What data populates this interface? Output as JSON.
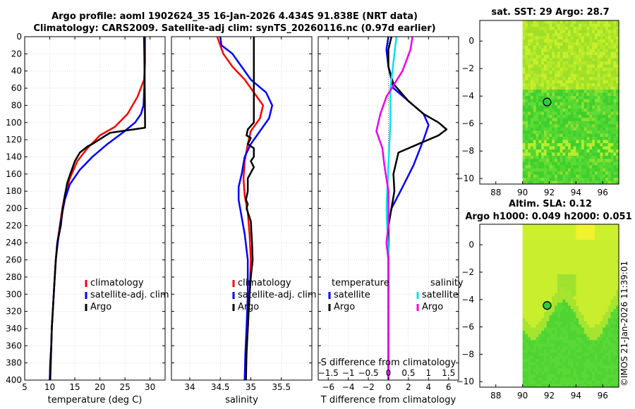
{
  "titles": {
    "line1": "Argo profile: aoml 1902624_35 16-Jan-2026 4.434S 91.838E (NRT data)",
    "line2": "Climatology: CARS2009. Satellite-adj clim: synTS_20260116.nc (0.97d earlier)",
    "sst": "sat. SST: 29 Argo: 28.7",
    "sla1": "Altim. SLA: 0.12",
    "sla2": "Argo h1000: 0.049 h2000: 0.051"
  },
  "footer": "©IMOS 21-Jan-2026 11:39:01",
  "colors": {
    "climatology": "#ff0000",
    "satellite": "#0000ff",
    "argo": "#000000",
    "s_satellite": "#00e5ee",
    "s_argo": "#ee00ee"
  },
  "chart_data": [
    {
      "type": "line",
      "id": "temp",
      "xlabel": "temperature (deg C)",
      "ylabel": "",
      "xlim": [
        5,
        33
      ],
      "ylim": [
        0,
        400
      ],
      "reverse_y": true,
      "grid": true,
      "xticks": [
        5,
        10,
        15,
        20,
        25,
        30
      ],
      "yticks": [
        0,
        20,
        40,
        60,
        80,
        100,
        120,
        140,
        160,
        180,
        200,
        220,
        240,
        260,
        280,
        300,
        320,
        340,
        360,
        380,
        400
      ],
      "legend": {
        "placement": "middle-right",
        "entries": [
          "climatology",
          "satellite-adj. clim",
          "Argo"
        ]
      },
      "series": [
        {
          "name": "climatology",
          "color": "climatology",
          "points": [
            [
              29,
              0
            ],
            [
              29,
              30
            ],
            [
              28.8,
              50
            ],
            [
              27.5,
              70
            ],
            [
              25.5,
              90
            ],
            [
              23,
              105
            ],
            [
              20,
              115
            ],
            [
              17.5,
              130
            ],
            [
              15.5,
              145
            ],
            [
              14,
              165
            ],
            [
              13,
              185
            ],
            [
              12.5,
              200
            ],
            [
              12,
              220
            ],
            [
              11.5,
              240
            ],
            [
              11.2,
              260
            ],
            [
              11,
              280
            ],
            [
              10.8,
              300
            ],
            [
              10.6,
              320
            ],
            [
              10.4,
              340
            ],
            [
              10.3,
              360
            ],
            [
              10.1,
              380
            ],
            [
              10,
              400
            ]
          ]
        },
        {
          "name": "satellite-adj. clim",
          "color": "satellite",
          "points": [
            [
              28.9,
              0
            ],
            [
              28.9,
              50
            ],
            [
              28.7,
              80
            ],
            [
              28.2,
              90
            ],
            [
              27,
              100
            ],
            [
              24.5,
              112
            ],
            [
              21.5,
              125
            ],
            [
              18.5,
              140
            ],
            [
              16,
              155
            ],
            [
              14,
              172
            ],
            [
              13,
              190
            ],
            [
              12.5,
              205
            ],
            [
              12,
              222
            ],
            [
              11.6,
              240
            ],
            [
              11.2,
              260
            ],
            [
              11,
              280
            ],
            [
              10.8,
              300
            ],
            [
              10.6,
              320
            ],
            [
              10.4,
              340
            ],
            [
              10.3,
              360
            ],
            [
              10.1,
              380
            ],
            [
              10,
              400
            ]
          ]
        },
        {
          "name": "Argo",
          "color": "argo",
          "points": [
            [
              28.8,
              0
            ],
            [
              28.9,
              40
            ],
            [
              29,
              100
            ],
            [
              29,
              106
            ],
            [
              22,
              112
            ],
            [
              18.5,
              125
            ],
            [
              17.5,
              128
            ],
            [
              16,
              135
            ],
            [
              15,
              145
            ],
            [
              14.2,
              158
            ],
            [
              13.5,
              170
            ],
            [
              13,
              185
            ],
            [
              12.6,
              200
            ],
            [
              12.2,
              220
            ],
            [
              11.5,
              240
            ],
            [
              11.2,
              260
            ],
            [
              11,
              280
            ],
            [
              10.8,
              300
            ],
            [
              10.6,
              320
            ],
            [
              10.4,
              340
            ],
            [
              10.3,
              360
            ],
            [
              10.2,
              380
            ],
            [
              10.1,
              400
            ]
          ]
        }
      ]
    },
    {
      "type": "line",
      "id": "sal",
      "xlabel": "salinity",
      "ylabel": "",
      "xlim": [
        33.7,
        36
      ],
      "ylim": [
        0,
        400
      ],
      "reverse_y": true,
      "grid": true,
      "xticks": [
        34,
        34.5,
        35,
        35.5
      ],
      "yticks": [
        0,
        20,
        40,
        60,
        80,
        100,
        120,
        140,
        160,
        180,
        200,
        220,
        240,
        260,
        280,
        300,
        320,
        340,
        360,
        380,
        400
      ],
      "legend": {
        "placement": "middle-right",
        "entries": [
          "climatology",
          "satellite-adj. clim",
          "Argo"
        ]
      },
      "series": [
        {
          "name": "climatology",
          "color": "climatology",
          "points": [
            [
              34.45,
              0
            ],
            [
              34.5,
              10
            ],
            [
              34.55,
              20
            ],
            [
              34.7,
              35
            ],
            [
              34.9,
              50
            ],
            [
              35.05,
              65
            ],
            [
              35.2,
              80
            ],
            [
              35.15,
              95
            ],
            [
              35,
              110
            ],
            [
              34.95,
              125
            ],
            [
              34.9,
              145
            ],
            [
              34.88,
              165
            ],
            [
              34.9,
              185
            ],
            [
              34.95,
              205
            ],
            [
              34.98,
              230
            ],
            [
              35,
              260
            ],
            [
              34.98,
              300
            ],
            [
              34.95,
              340
            ],
            [
              34.92,
              370
            ],
            [
              34.9,
              400
            ]
          ]
        },
        {
          "name": "satellite-adj. clim",
          "color": "satellite",
          "points": [
            [
              34.5,
              0
            ],
            [
              34.52,
              10
            ],
            [
              34.7,
              20
            ],
            [
              34.85,
              35
            ],
            [
              35,
              50
            ],
            [
              35.25,
              65
            ],
            [
              35.35,
              80
            ],
            [
              35.3,
              95
            ],
            [
              35.15,
              110
            ],
            [
              35,
              125
            ],
            [
              34.9,
              140
            ],
            [
              34.85,
              160
            ],
            [
              34.8,
              175
            ],
            [
              34.8,
              190
            ],
            [
              34.85,
              210
            ],
            [
              34.9,
              230
            ],
            [
              34.95,
              260
            ],
            [
              34.95,
              300
            ],
            [
              34.93,
              340
            ],
            [
              34.91,
              370
            ],
            [
              34.9,
              400
            ]
          ]
        },
        {
          "name": "Argo",
          "color": "argo",
          "points": [
            [
              35.05,
              0
            ],
            [
              35.05,
              90
            ],
            [
              35.05,
              100
            ],
            [
              34.95,
              108
            ],
            [
              34.93,
              115
            ],
            [
              35,
              118
            ],
            [
              34.95,
              125
            ],
            [
              35.05,
              130
            ],
            [
              35.05,
              140
            ],
            [
              35,
              145
            ],
            [
              35.05,
              152
            ],
            [
              34.95,
              165
            ],
            [
              34.95,
              180
            ],
            [
              34.92,
              190
            ],
            [
              34.95,
              195
            ],
            [
              34.93,
              200
            ],
            [
              35,
              215
            ],
            [
              35.02,
              240
            ],
            [
              35.03,
              260
            ],
            [
              35,
              280
            ],
            [
              34.98,
              300
            ],
            [
              34.95,
              340
            ],
            [
              34.93,
              370
            ],
            [
              34.92,
              400
            ]
          ]
        }
      ]
    },
    {
      "type": "line",
      "id": "diff",
      "xlabel": "T difference from climatology",
      "xlabel_top": "S difference from climatology",
      "xlim": [
        -7,
        7
      ],
      "ylim": [
        0,
        400
      ],
      "reverse_y": true,
      "grid": true,
      "xticks": [
        -6,
        -4,
        -2,
        0,
        2,
        4,
        6
      ],
      "x2lim": [
        -1.75,
        1.75
      ],
      "x2ticks": [
        -1.5,
        -1,
        -0.5,
        0,
        0.5,
        1,
        1.5
      ],
      "yticks": [
        0,
        20,
        40,
        60,
        80,
        100,
        120,
        140,
        160,
        180,
        200,
        220,
        240,
        260,
        280,
        300,
        320,
        340,
        360,
        380,
        400
      ],
      "legend": {
        "placement": "middle",
        "groups": [
          {
            "title": "temperature",
            "entries": [
              "satellite",
              "Argo"
            ]
          },
          {
            "title": "salinity",
            "entries": [
              "satellite",
              "Argo"
            ]
          }
        ]
      },
      "series": [
        {
          "name": "T satellite",
          "axis": "x",
          "color": "satellite",
          "points": [
            [
              0,
              0
            ],
            [
              -0.2,
              15
            ],
            [
              0,
              35
            ],
            [
              0.5,
              60
            ],
            [
              2,
              75
            ],
            [
              3.5,
              90
            ],
            [
              4,
              103
            ],
            [
              3.5,
              120
            ],
            [
              2.5,
              150
            ],
            [
              1.2,
              180
            ],
            [
              0.3,
              200
            ],
            [
              0,
              220
            ],
            [
              0,
              400
            ]
          ]
        },
        {
          "name": "T Argo",
          "axis": "x",
          "color": "argo",
          "points": [
            [
              0.3,
              0
            ],
            [
              0,
              15
            ],
            [
              0,
              35
            ],
            [
              0.5,
              55
            ],
            [
              2,
              75
            ],
            [
              3.5,
              90
            ],
            [
              5,
              100
            ],
            [
              5.8,
              108
            ],
            [
              5,
              115
            ],
            [
              3,
              125
            ],
            [
              1,
              135
            ],
            [
              0.5,
              160
            ],
            [
              0.6,
              180
            ],
            [
              0.3,
              200
            ],
            [
              0,
              220
            ],
            [
              0,
              400
            ]
          ]
        },
        {
          "name": "S satellite",
          "axis": "x2",
          "color": "s_satellite",
          "points": [
            [
              0.2,
              0
            ],
            [
              0.15,
              20
            ],
            [
              0.05,
              60
            ],
            [
              0.05,
              100
            ],
            [
              0,
              150
            ],
            [
              -0.05,
              200
            ],
            [
              0,
              250
            ],
            [
              0,
              400
            ]
          ]
        },
        {
          "name": "S Argo",
          "axis": "x2",
          "color": "s_argo",
          "points": [
            [
              0.6,
              0
            ],
            [
              0.55,
              15
            ],
            [
              0.35,
              40
            ],
            [
              -0.05,
              70
            ],
            [
              -0.2,
              90
            ],
            [
              -0.3,
              110
            ],
            [
              -0.15,
              130
            ],
            [
              -0.1,
              150
            ],
            [
              0,
              180
            ],
            [
              0,
              220
            ],
            [
              -0.05,
              240
            ],
            [
              0,
              260
            ],
            [
              0,
              400
            ]
          ]
        }
      ]
    },
    {
      "type": "heatmap",
      "id": "sstmap",
      "title": "sat. SST: 29 Argo: 28.7",
      "xlim": [
        86.8,
        97.2
      ],
      "ylim": [
        -10.4,
        1.5
      ],
      "xticks": [
        88,
        90,
        92,
        94,
        96
      ],
      "yticks": [
        -10,
        -8,
        -6,
        -4,
        -2,
        0
      ],
      "data_extent": {
        "x": [
          90,
          97.2
        ],
        "y": [
          -10.4,
          1.5
        ]
      },
      "marker": {
        "lon": 91.838,
        "lat": -4.434
      }
    },
    {
      "type": "heatmap",
      "id": "slamap",
      "title": "Altim. SLA: 0.12",
      "xlim": [
        86.8,
        97.2
      ],
      "ylim": [
        -10.4,
        1.5
      ],
      "xticks": [
        88,
        90,
        92,
        94,
        96
      ],
      "yticks": [
        -10,
        -8,
        -6,
        -4,
        -2,
        0
      ],
      "data_extent": {
        "x": [
          90,
          97.2
        ],
        "y": [
          -10.4,
          1.5
        ]
      },
      "marker": {
        "lon": 91.838,
        "lat": -4.434
      }
    }
  ]
}
